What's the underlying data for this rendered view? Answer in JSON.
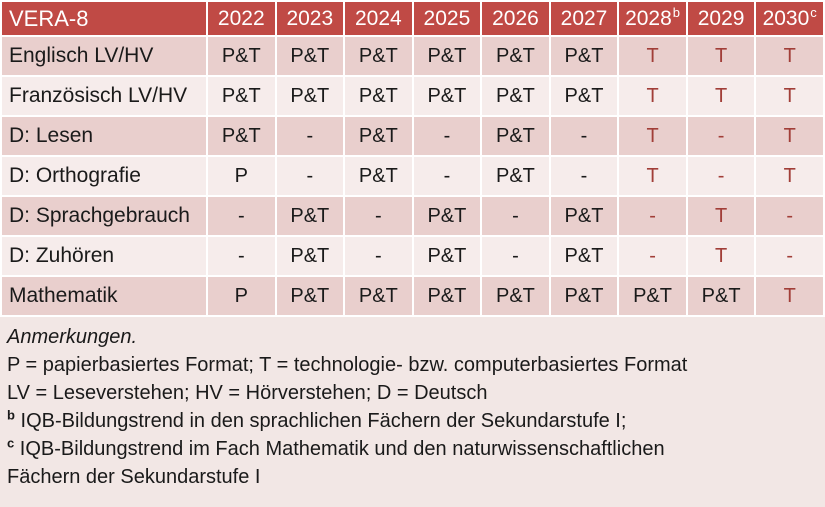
{
  "colors": {
    "header_bg": "#C04A45",
    "band_dark": "#E9CFCD",
    "band_light": "#F6ECEB",
    "notes_bg": "#F2E7E5",
    "highlight_text": "#A13E38",
    "body_text": "#1A1A1A",
    "header_text": "#FFFFFF"
  },
  "table": {
    "title": "VERA-8",
    "columns": [
      {
        "label": "2022",
        "sup": ""
      },
      {
        "label": "2023",
        "sup": ""
      },
      {
        "label": "2024",
        "sup": ""
      },
      {
        "label": "2025",
        "sup": ""
      },
      {
        "label": "2026",
        "sup": ""
      },
      {
        "label": "2027",
        "sup": ""
      },
      {
        "label": "2028",
        "sup": "b"
      },
      {
        "label": "2029",
        "sup": ""
      },
      {
        "label": "2030",
        "sup": "c"
      }
    ],
    "rows": [
      {
        "label": "Englisch LV/HV",
        "band": "dark",
        "cells": [
          {
            "text": "P&T",
            "highlight": false
          },
          {
            "text": "P&T",
            "highlight": false
          },
          {
            "text": "P&T",
            "highlight": false
          },
          {
            "text": "P&T",
            "highlight": false
          },
          {
            "text": "P&T",
            "highlight": false
          },
          {
            "text": "P&T",
            "highlight": false
          },
          {
            "text": "T",
            "highlight": true
          },
          {
            "text": "T",
            "highlight": true
          },
          {
            "text": "T",
            "highlight": true
          }
        ]
      },
      {
        "label": "Französisch LV/HV",
        "band": "light",
        "cells": [
          {
            "text": "P&T",
            "highlight": false
          },
          {
            "text": "P&T",
            "highlight": false
          },
          {
            "text": "P&T",
            "highlight": false
          },
          {
            "text": "P&T",
            "highlight": false
          },
          {
            "text": "P&T",
            "highlight": false
          },
          {
            "text": "P&T",
            "highlight": false
          },
          {
            "text": "T",
            "highlight": true
          },
          {
            "text": "T",
            "highlight": true
          },
          {
            "text": "T",
            "highlight": true
          }
        ]
      },
      {
        "label": "D: Lesen",
        "band": "dark",
        "cells": [
          {
            "text": "P&T",
            "highlight": false
          },
          {
            "text": "-",
            "highlight": false
          },
          {
            "text": "P&T",
            "highlight": false
          },
          {
            "text": "-",
            "highlight": false
          },
          {
            "text": "P&T",
            "highlight": false
          },
          {
            "text": "-",
            "highlight": false
          },
          {
            "text": "T",
            "highlight": true
          },
          {
            "text": "-",
            "highlight": true
          },
          {
            "text": "T",
            "highlight": true
          }
        ]
      },
      {
        "label": "D: Orthografie",
        "band": "light",
        "cells": [
          {
            "text": "P",
            "highlight": false
          },
          {
            "text": "-",
            "highlight": false
          },
          {
            "text": "P&T",
            "highlight": false
          },
          {
            "text": "-",
            "highlight": false
          },
          {
            "text": "P&T",
            "highlight": false
          },
          {
            "text": "-",
            "highlight": false
          },
          {
            "text": "T",
            "highlight": true
          },
          {
            "text": "-",
            "highlight": true
          },
          {
            "text": "T",
            "highlight": true
          }
        ]
      },
      {
        "label": "D: Sprachgebrauch",
        "band": "dark",
        "cells": [
          {
            "text": "-",
            "highlight": false
          },
          {
            "text": "P&T",
            "highlight": false
          },
          {
            "text": "-",
            "highlight": false
          },
          {
            "text": "P&T",
            "highlight": false
          },
          {
            "text": "-",
            "highlight": false
          },
          {
            "text": "P&T",
            "highlight": false
          },
          {
            "text": "-",
            "highlight": true
          },
          {
            "text": "T",
            "highlight": true
          },
          {
            "text": "-",
            "highlight": true
          }
        ]
      },
      {
        "label": "D: Zuhören",
        "band": "light",
        "cells": [
          {
            "text": "-",
            "highlight": false
          },
          {
            "text": "P&T",
            "highlight": false
          },
          {
            "text": "-",
            "highlight": false
          },
          {
            "text": "P&T",
            "highlight": false
          },
          {
            "text": "-",
            "highlight": false
          },
          {
            "text": "P&T",
            "highlight": false
          },
          {
            "text": "-",
            "highlight": true
          },
          {
            "text": "T",
            "highlight": true
          },
          {
            "text": "-",
            "highlight": true
          }
        ]
      },
      {
        "label": "Mathematik",
        "band": "dark",
        "cells": [
          {
            "text": "P",
            "highlight": false
          },
          {
            "text": "P&T",
            "highlight": false
          },
          {
            "text": "P&T",
            "highlight": false
          },
          {
            "text": "P&T",
            "highlight": false
          },
          {
            "text": "P&T",
            "highlight": false
          },
          {
            "text": "P&T",
            "highlight": false
          },
          {
            "text": "P&T",
            "highlight": false
          },
          {
            "text": "P&T",
            "highlight": false
          },
          {
            "text": "T",
            "highlight": true
          }
        ]
      }
    ]
  },
  "notes": {
    "heading": "Anmerkungen.",
    "lines": [
      {
        "sup": "",
        "text": "P = papierbasiertes Format; T = technologie- bzw. computerbasiertes Format"
      },
      {
        "sup": "",
        "text": "LV = Leseverstehen; HV = Hörverstehen; D = Deutsch"
      },
      {
        "sup": "b",
        "text": "IQB-Bildungstrend in den sprachlichen Fächern der Sekundarstufe I;"
      },
      {
        "sup": "c",
        "text": "IQB-Bildungstrend im Fach Mathematik und den naturwissenschaftlichen"
      },
      {
        "sup": "",
        "text": "Fächern der Sekundarstufe I"
      }
    ]
  }
}
